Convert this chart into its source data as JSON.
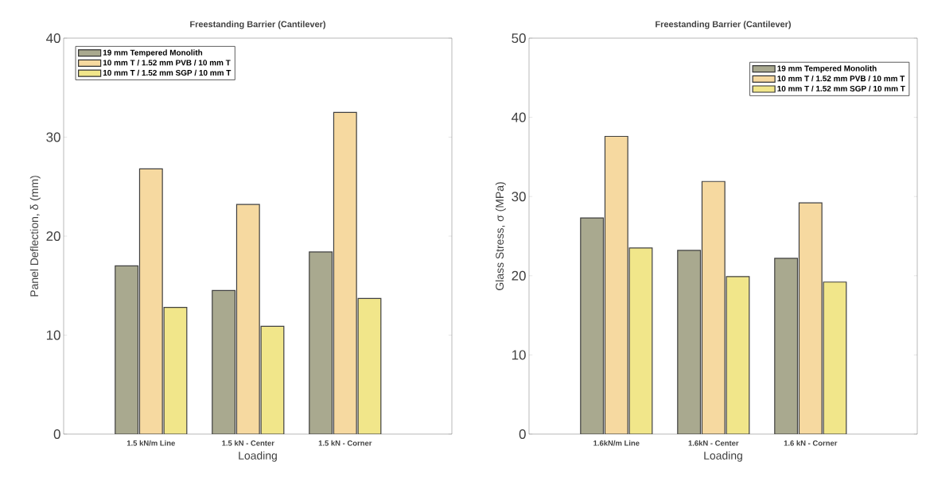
{
  "chart_data": [
    {
      "type": "bar",
      "title": "Freestanding Barrier (Cantilever)",
      "xlabel": "Loading",
      "ylabel": "Panel Deflection, δ (mm)",
      "categories": [
        "1.5 kN/m Line",
        "1.5 kN - Center",
        "1.5 kN - Corner"
      ],
      "series": [
        {
          "name": "19 mm Tempered Monolith",
          "color": "#a9a98f",
          "values": [
            17.0,
            14.5,
            18.4
          ]
        },
        {
          "name": "10 mm T / 1.52 mm PVB / 10 mm T",
          "color": "#f6d9a0",
          "values": [
            26.8,
            23.2,
            32.5
          ]
        },
        {
          "name": "10 mm T / 1.52 mm SGP / 10 mm T",
          "color": "#f1e68a",
          "values": [
            12.8,
            10.9,
            13.7
          ]
        }
      ],
      "ylim": [
        0,
        40
      ],
      "yticks": [
        0,
        10,
        20,
        30,
        40
      ],
      "legend": "top left",
      "grid": false
    },
    {
      "type": "bar",
      "title": "Freestanding Barrier (Cantilever)",
      "xlabel": "Loading",
      "ylabel": "Glass Stress, σ (MPa)",
      "categories": [
        "1.6kN/m Line",
        "1.6kN - Center",
        "1.6 kN - Corner"
      ],
      "series": [
        {
          "name": "19 mm Tempered Monolith",
          "color": "#a9a98f",
          "values": [
            27.3,
            23.2,
            22.2
          ]
        },
        {
          "name": "10 mm T / 1.52 mm PVB / 10 mm T",
          "color": "#f6d9a0",
          "values": [
            37.6,
            31.9,
            29.2
          ]
        },
        {
          "name": "10 mm T / 1.52 mm SGP / 10 mm T",
          "color": "#f1e68a",
          "values": [
            23.5,
            19.9,
            19.2
          ]
        }
      ],
      "ylim": [
        0,
        50
      ],
      "yticks": [
        0,
        10,
        20,
        30,
        40,
        50
      ],
      "legend": "top right",
      "grid": false
    }
  ]
}
